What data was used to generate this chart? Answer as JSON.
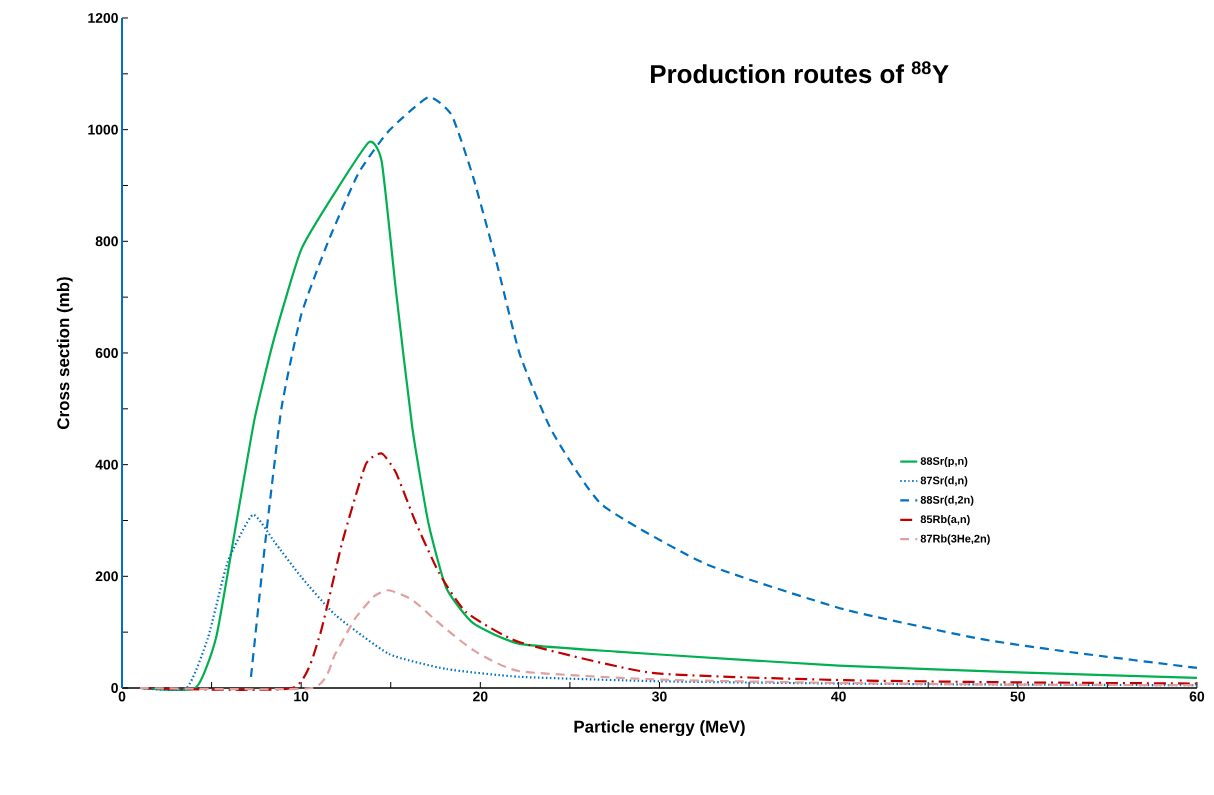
{
  "chart_data": {
    "type": "line",
    "title": "Production routes of $^{88}$Y",
    "xlabel": "Particle energy (MeV)",
    "ylabel": "Cross section (mb)",
    "xlim": [
      0,
      60
    ],
    "ylim": [
      0,
      1200
    ],
    "xticks": [
      0,
      {
        "value": 5,
        "label": null
      },
      10,
      {
        "value": 15,
        "label": null
      },
      20,
      {
        "value": 25,
        "label": null
      },
      30,
      {
        "value": 35,
        "label": null
      },
      40,
      {
        "value": 45,
        "label": null
      },
      50,
      {
        "value": 55,
        "label": null
      },
      60
    ],
    "yticks": [
      0,
      {
        "value": 100,
        "label": null
      },
      200,
      {
        "value": 300,
        "label": null
      },
      400,
      {
        "value": 500,
        "label": null
      },
      600,
      {
        "value": 700,
        "label": null
      },
      800,
      {
        "value": 900,
        "label": null
      },
      1000,
      {
        "value": 1100,
        "label": null
      },
      1200
    ],
    "grid": false,
    "legend": "right",
    "marker": "none",
    "series": [
      {
        "name": "88Sr(p,n)",
        "color": "#00b050",
        "line_style": "solid",
        "x": [
          1,
          4.1,
          5.25,
          6.3,
          7.4,
          8.5,
          10,
          11.9,
          13.8,
          14.5,
          15.3,
          16.2,
          17.1,
          18.1,
          19.6,
          22.2,
          27.6,
          30,
          40,
          50,
          60
        ],
        "values": [
          0,
          0,
          90,
          281,
          482,
          627,
          785,
          888,
          978,
          942,
          709,
          467,
          296,
          179,
          116,
          79,
          65,
          60,
          40,
          28,
          18
        ]
      },
      {
        "name": "87Sr(d,n)",
        "color": "#0070c0",
        "line_style": "dotted",
        "x": [
          1,
          3.6,
          4.8,
          5.9,
          7.3,
          8.5,
          10,
          11.9,
          14.9,
          18.1,
          22.2,
          30,
          40,
          50,
          60
        ],
        "values": [
          0,
          0,
          90,
          226,
          310,
          262,
          199,
          131,
          61,
          34,
          20,
          12,
          8,
          6,
          5
        ]
      },
      {
        "name": "88Sr(d,2n)",
        "color": "#0070c0",
        "line_style": "dashed",
        "x": [
          7.2,
          8.0,
          8.9,
          10,
          11.5,
          13.2,
          14.9,
          17.1,
          18.4,
          19.6,
          20.9,
          22.2,
          24,
          26.8,
          32.6,
          40.3,
          47.9,
          53,
          60
        ],
        "values": [
          20,
          262,
          501,
          668,
          799,
          922,
          998,
          1058,
          1026,
          915,
          763,
          598,
          460,
          328,
          222,
          141,
          88,
          64,
          36
        ]
      },
      {
        "name": "85Rb(a,n)",
        "color": "#c00000",
        "line_style": "dashdot",
        "x": [
          1,
          9.5,
          11,
          12.3,
          13.6,
          14.5,
          15.3,
          16.4,
          17.7,
          19.2,
          22.2,
          29.6,
          40.3,
          50,
          60
        ],
        "values": [
          0,
          0,
          90,
          262,
          400,
          420,
          385,
          296,
          206,
          136,
          82,
          27,
          14,
          10,
          8
        ]
      },
      {
        "name": "87Rb(3He,2n)",
        "color": "#e0a0a0",
        "line_style": "dashed",
        "x": [
          1,
          10.6,
          11.9,
          13,
          14.1,
          14.9,
          16.2,
          17.7,
          19.6,
          22.2,
          30,
          40,
          50,
          60
        ],
        "values": [
          0,
          0,
          61,
          124,
          165,
          175,
          158,
          116,
          68,
          30,
          15,
          9,
          6,
          5
        ]
      }
    ]
  }
}
